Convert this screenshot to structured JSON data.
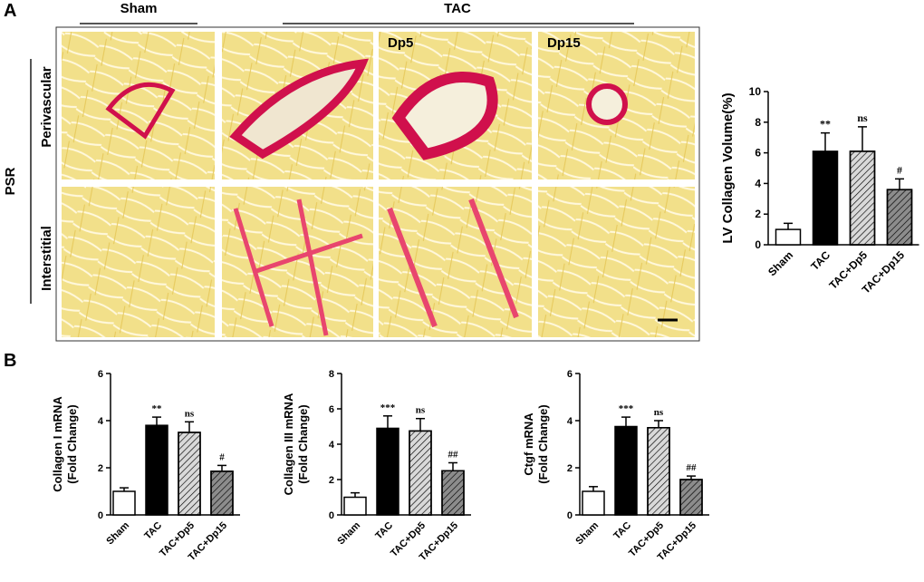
{
  "panels": {
    "a": {
      "letter": "A",
      "group_labels": [
        "Sham",
        "TAC"
      ],
      "column_labels": [
        "Dp5",
        "Dp15"
      ],
      "stain": "PSR",
      "row_labels": [
        "Perivascular",
        "Interstitial"
      ]
    },
    "b": {
      "letter": "B"
    }
  },
  "chart_data": [
    {
      "type": "bar",
      "ylabel": [
        "LV Collagen Volume(%)"
      ],
      "categories": [
        "Sham",
        "TAC",
        "TAC+Dp5",
        "TAC+Dp15"
      ],
      "values": [
        1.0,
        6.1,
        6.1,
        3.6
      ],
      "errors": [
        0.4,
        1.2,
        1.6,
        0.7
      ],
      "annotations": [
        null,
        "**",
        "ns",
        "#"
      ],
      "colors": [
        "#ffffff",
        "#000000",
        "#d9d9d9",
        "#8c8c8c"
      ],
      "hatch": [
        false,
        false,
        true,
        true
      ],
      "ylim": [
        0,
        10
      ],
      "yticks": [
        0,
        2,
        4,
        6,
        8,
        10
      ]
    },
    {
      "type": "bar",
      "ylabel": [
        "Collagen I mRNA",
        "(Fold Change)"
      ],
      "categories": [
        "Sham",
        "TAC",
        "TAC+Dp5",
        "TAC+Dp15"
      ],
      "values": [
        1.0,
        3.8,
        3.5,
        1.85
      ],
      "errors": [
        0.15,
        0.35,
        0.45,
        0.25
      ],
      "annotations": [
        null,
        "**",
        "ns",
        "#"
      ],
      "colors": [
        "#ffffff",
        "#000000",
        "#d9d9d9",
        "#8c8c8c"
      ],
      "hatch": [
        false,
        false,
        true,
        true
      ],
      "ylim": [
        0,
        6
      ],
      "yticks": [
        0,
        2,
        4,
        6
      ]
    },
    {
      "type": "bar",
      "ylabel": [
        "Collagen III mRNA",
        "(Fold Change)"
      ],
      "categories": [
        "Sham",
        "TAC",
        "TAC+Dp5",
        "TAC+Dp15"
      ],
      "values": [
        1.0,
        4.9,
        4.75,
        2.5
      ],
      "errors": [
        0.25,
        0.7,
        0.7,
        0.45
      ],
      "annotations": [
        null,
        "***",
        "ns",
        "##"
      ],
      "colors": [
        "#ffffff",
        "#000000",
        "#d9d9d9",
        "#8c8c8c"
      ],
      "hatch": [
        false,
        false,
        true,
        true
      ],
      "ylim": [
        0,
        8
      ],
      "yticks": [
        0,
        2,
        4,
        6,
        8
      ]
    },
    {
      "type": "bar",
      "ylabel": [
        "Ctgf  mRNA",
        "(Fold Change)"
      ],
      "categories": [
        "Sham",
        "TAC",
        "TAC+Dp5",
        "TAC+Dp15"
      ],
      "values": [
        1.0,
        3.75,
        3.7,
        1.5
      ],
      "errors": [
        0.2,
        0.4,
        0.3,
        0.15
      ],
      "annotations": [
        null,
        "***",
        "ns",
        "##"
      ],
      "colors": [
        "#ffffff",
        "#000000",
        "#d9d9d9",
        "#8c8c8c"
      ],
      "hatch": [
        false,
        false,
        true,
        true
      ],
      "ylim": [
        0,
        6
      ],
      "yticks": [
        0,
        2,
        4,
        6
      ]
    }
  ]
}
